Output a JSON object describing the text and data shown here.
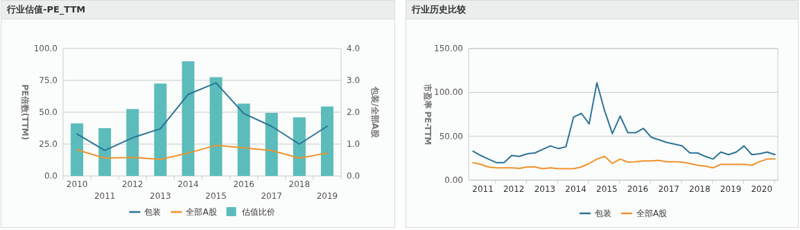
{
  "chart_data": [
    {
      "type": "bar",
      "title": "行业估值-PE_TTM",
      "ylabel": "PE倍数(TTM)",
      "y2label": "包装/全部A股",
      "categories": [
        "2010",
        "2011",
        "2012",
        "2013",
        "2014",
        "2015",
        "2016",
        "2017",
        "2018",
        "2019"
      ],
      "series": [
        {
          "name": "包装",
          "type": "line",
          "color": "#2a7396",
          "values": [
            33,
            20,
            30,
            37,
            64,
            73,
            49,
            39,
            25,
            39
          ]
        },
        {
          "name": "全部A股",
          "type": "line",
          "color": "#f0922b",
          "values": [
            20.5,
            14,
            14.5,
            13,
            18,
            24,
            22,
            20,
            14,
            18
          ]
        },
        {
          "name": "估值比价",
          "type": "bar",
          "axis": "y2",
          "color": "#5bbcbb",
          "values": [
            1.65,
            1.5,
            2.1,
            2.9,
            3.6,
            3.1,
            2.27,
            1.98,
            1.84,
            2.18
          ]
        }
      ],
      "ylim": [
        0,
        100
      ],
      "yticks": [
        {
          "value": 0,
          "label": "0.0"
        },
        {
          "value": 25,
          "label": "25.0"
        },
        {
          "value": 50,
          "label": "50.0"
        },
        {
          "value": 75,
          "label": "75.0"
        },
        {
          "value": 100,
          "label": "100.0"
        }
      ],
      "y2lim": [
        0,
        4
      ],
      "y2ticks": [
        {
          "value": 0,
          "label": "0.0"
        },
        {
          "value": 1,
          "label": "1.0"
        },
        {
          "value": 2,
          "label": "2.0"
        },
        {
          "value": 3,
          "label": "3.0"
        },
        {
          "value": 4,
          "label": "4.0"
        }
      ],
      "grid": "y",
      "legend": "bottom"
    },
    {
      "type": "line",
      "title": "行业历史比较",
      "ylabel": "市盈率 PE-TTM",
      "x": [
        2011,
        2011.25,
        2011.5,
        2011.75,
        2012,
        2012.25,
        2012.5,
        2012.75,
        2013,
        2013.25,
        2013.5,
        2013.75,
        2014,
        2014.25,
        2014.5,
        2014.75,
        2015,
        2015.25,
        2015.5,
        2015.75,
        2016,
        2016.25,
        2016.5,
        2016.75,
        2017,
        2017.25,
        2017.5,
        2017.75,
        2018,
        2018.25,
        2018.5,
        2018.75,
        2019,
        2019.25,
        2019.5,
        2019.75,
        2020,
        2020.25,
        2020.5,
        2020.75
      ],
      "series": [
        {
          "name": "包装",
          "color": "#2a7396",
          "values": [
            33,
            28,
            24,
            20,
            20,
            28,
            27,
            30,
            31,
            35,
            39,
            36,
            38,
            72,
            76,
            64,
            111,
            79,
            53,
            73,
            54,
            54,
            59,
            49,
            46,
            43,
            41,
            39,
            31,
            31,
            27,
            24,
            32,
            29,
            32,
            39,
            29,
            30,
            32,
            29
          ]
        },
        {
          "name": "全部A股",
          "color": "#f0922b",
          "values": [
            20,
            18,
            15,
            14,
            14,
            14,
            13.5,
            15,
            15,
            13,
            14,
            13,
            13,
            13,
            15,
            19,
            24,
            27,
            19,
            24,
            20.5,
            21,
            22,
            22,
            22.5,
            21,
            21,
            20.5,
            19,
            17,
            16,
            14,
            18,
            18,
            18,
            18,
            17,
            21,
            24,
            24
          ]
        }
      ],
      "xlim": [
        2010.86,
        2020.84
      ],
      "xticks": [
        {
          "value": 2011.32,
          "label": "2011"
        },
        {
          "value": 2012.32,
          "label": "2012"
        },
        {
          "value": 2013.32,
          "label": "2013"
        },
        {
          "value": 2014.32,
          "label": "2014"
        },
        {
          "value": 2015.32,
          "label": "2015"
        },
        {
          "value": 2016.32,
          "label": "2016"
        },
        {
          "value": 2017.32,
          "label": "2017"
        },
        {
          "value": 2018.32,
          "label": "2018"
        },
        {
          "value": 2019.32,
          "label": "2019"
        },
        {
          "value": 2020.32,
          "label": "2020"
        },
        {
          "value": 2011.73,
          "label": null
        },
        {
          "value": 2012.73,
          "label": null
        },
        {
          "value": 2013.73,
          "label": null
        },
        {
          "value": 2014.73,
          "label": null
        },
        {
          "value": 2015.73,
          "label": null
        },
        {
          "value": 2016.73,
          "label": null
        },
        {
          "value": 2017.73,
          "label": null
        },
        {
          "value": 2018.73,
          "label": null
        },
        {
          "value": 2019.73,
          "label": null
        },
        {
          "value": 2020.73,
          "label": null
        }
      ],
      "ylim": [
        0,
        150
      ],
      "yticks": [
        {
          "value": 0,
          "label": "0.00"
        },
        {
          "value": 50,
          "label": "50.00"
        },
        {
          "value": 100,
          "label": "100.00"
        },
        {
          "value": 150,
          "label": "150.00"
        }
      ],
      "grid": "y",
      "legend": "bottom"
    }
  ]
}
